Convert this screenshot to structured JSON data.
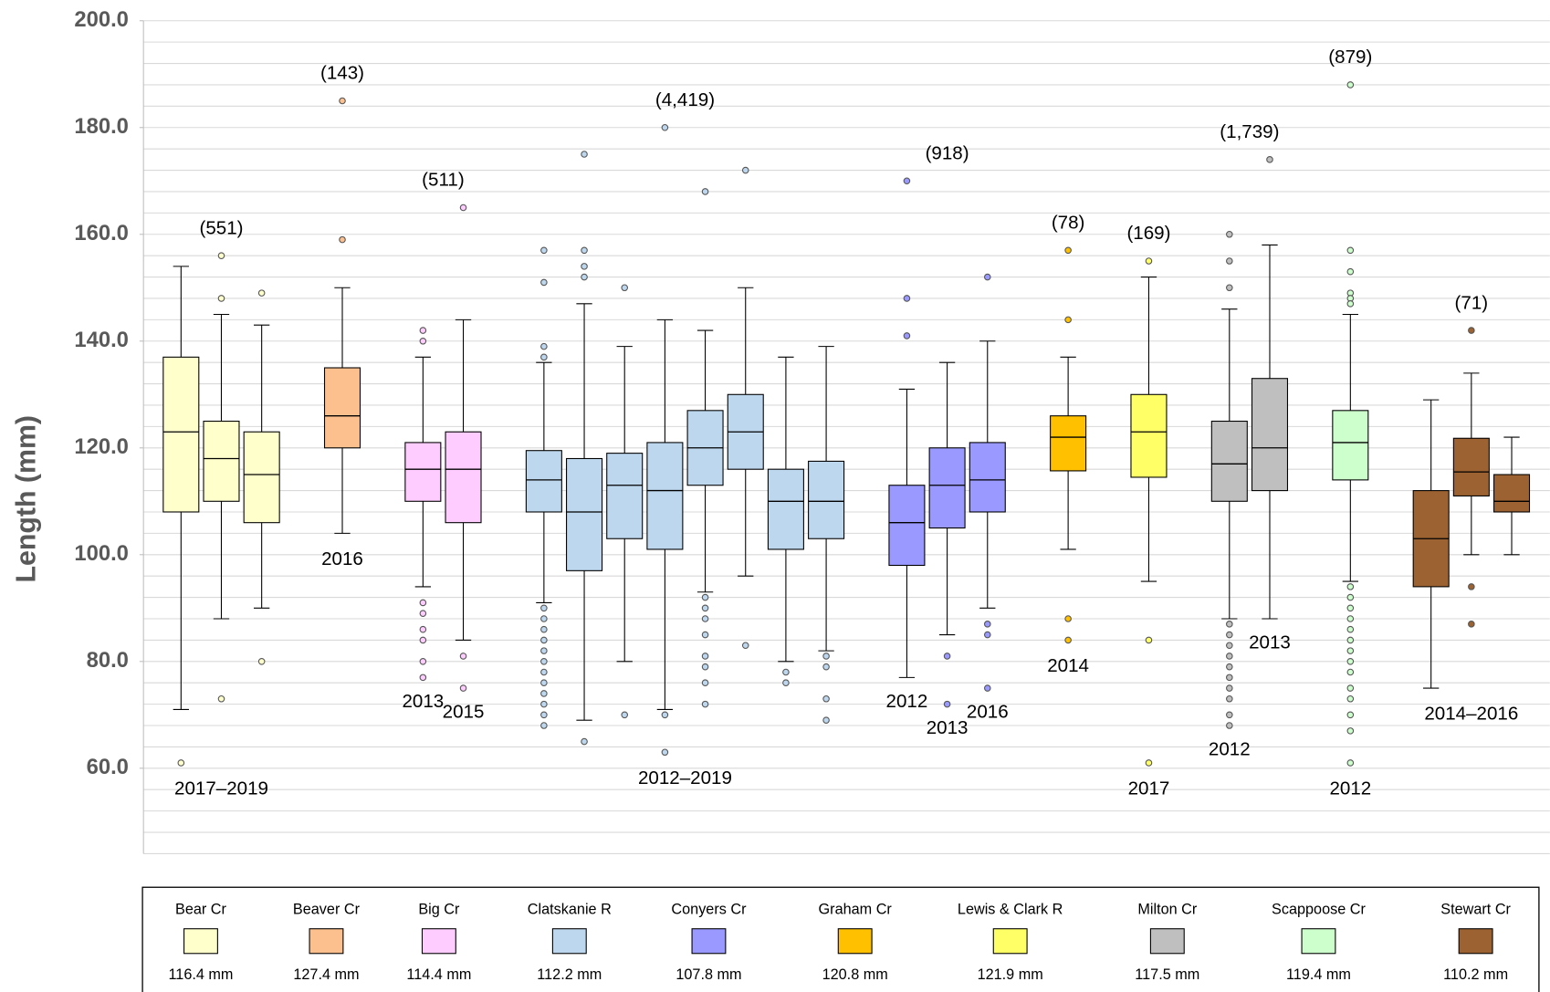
{
  "chart_data": {
    "type": "box",
    "y_label": "Length (mm)",
    "ylim": [
      44,
      200
    ],
    "yticks": [
      {
        "value": 60,
        "label": "60.0"
      },
      {
        "value": 80,
        "label": "80.0"
      },
      {
        "value": 100,
        "label": "100.0"
      },
      {
        "value": 120,
        "label": "120.0"
      },
      {
        "value": 140,
        "label": "140.0"
      },
      {
        "value": 160,
        "label": "160.0"
      },
      {
        "value": 180,
        "label": "180.0"
      },
      {
        "value": 200,
        "label": "200.0"
      }
    ],
    "minor_yticks": [
      44,
      48,
      52,
      56,
      60,
      64,
      68,
      72,
      76,
      80,
      84,
      88,
      92,
      96,
      100,
      104,
      108,
      112,
      116,
      120,
      124,
      128,
      132,
      136,
      140,
      144,
      148,
      152,
      156,
      160,
      164,
      168,
      172,
      176,
      180,
      184,
      188,
      192,
      196,
      200
    ],
    "grid": true,
    "groups": [
      {
        "name": "Bear Cr",
        "color": "#ffffcc",
        "summary": "116.4 mm",
        "count": "(551)",
        "years": "2017–2019",
        "boxes": [
          {
            "whislo": 71,
            "q1": 108,
            "med": 123,
            "q3": 137,
            "whishi": 154,
            "fliers": [
              61
            ]
          },
          {
            "whislo": 88,
            "q1": 110,
            "med": 118,
            "q3": 125,
            "whishi": 145,
            "fliers": [
              156,
              148,
              73
            ]
          },
          {
            "whislo": 90,
            "q1": 106,
            "med": 115,
            "q3": 123,
            "whishi": 143,
            "fliers": [
              149,
              80
            ]
          }
        ]
      },
      {
        "name": "Beaver Cr",
        "color": "#fcc08e",
        "summary": "127.4 mm",
        "count": "(143)",
        "years": "2016",
        "boxes": [
          {
            "whislo": 104,
            "q1": 120,
            "med": 126,
            "q3": 135,
            "whishi": 150,
            "fliers": [
              185,
              159
            ]
          }
        ]
      },
      {
        "name": "Big Cr",
        "color": "#ffccff",
        "summary": "114.4 mm",
        "count": "(511)",
        "boxes": [
          {
            "year": "2013",
            "whislo": 94,
            "q1": 110,
            "med": 116,
            "q3": 121,
            "whishi": 137,
            "fliers": [
              142,
              140,
              91,
              89,
              86,
              84,
              80,
              77
            ]
          },
          {
            "year": "2015",
            "whislo": 84,
            "q1": 106,
            "med": 116,
            "q3": 123,
            "whishi": 144,
            "fliers": [
              165,
              81,
              75
            ]
          }
        ]
      },
      {
        "name": "Clatskanie R",
        "color": "#bdd7ee",
        "summary": "112.2 mm",
        "count": "(4,419)",
        "years": "2012–2019",
        "boxes": [
          {
            "whislo": 91,
            "q1": 108,
            "med": 114,
            "q3": 119.5,
            "whishi": 136,
            "fliers": [
              157,
              151,
              139,
              137,
              90,
              88,
              86,
              84,
              82,
              80,
              78,
              76,
              74,
              72,
              70,
              68
            ]
          },
          {
            "whislo": 69,
            "q1": 97,
            "med": 108,
            "q3": 118,
            "whishi": 147,
            "fliers": [
              175,
              157,
              154,
              152,
              65
            ]
          },
          {
            "whislo": 80,
            "q1": 103,
            "med": 113,
            "q3": 119,
            "whishi": 139,
            "fliers": [
              150,
              70
            ]
          },
          {
            "whislo": 71,
            "q1": 101,
            "med": 112,
            "q3": 121,
            "whishi": 144,
            "fliers": [
              180,
              70,
              63
            ]
          },
          {
            "whislo": 93,
            "q1": 113,
            "med": 120,
            "q3": 127,
            "whishi": 142,
            "fliers": [
              168,
              92,
              90,
              88,
              85,
              81,
              79,
              76,
              72
            ]
          },
          {
            "whislo": 96,
            "q1": 116,
            "med": 123,
            "q3": 130,
            "whishi": 150,
            "fliers": [
              172,
              83
            ]
          },
          {
            "whislo": 80,
            "q1": 101,
            "med": 110,
            "q3": 116,
            "whishi": 137,
            "fliers": [
              78,
              76
            ]
          },
          {
            "whislo": 82,
            "q1": 103,
            "med": 110,
            "q3": 117.5,
            "whishi": 139,
            "fliers": [
              81,
              79,
              73,
              69
            ]
          }
        ]
      },
      {
        "name": "Conyers Cr",
        "color": "#9999ff",
        "summary": "107.8 mm",
        "count": "(918)",
        "boxes": [
          {
            "year": "2012",
            "whislo": 77,
            "q1": 98,
            "med": 106,
            "q3": 113,
            "whishi": 131,
            "fliers": [
              170,
              148,
              141
            ]
          },
          {
            "year": "2013",
            "whislo": 85,
            "q1": 105,
            "med": 113,
            "q3": 120,
            "whishi": 136,
            "fliers": [
              81,
              72
            ]
          },
          {
            "year": "2016",
            "whislo": 90,
            "q1": 108,
            "med": 114,
            "q3": 121,
            "whishi": 140,
            "fliers": [
              152,
              87,
              85,
              75
            ]
          }
        ]
      },
      {
        "name": "Graham Cr",
        "color": "#ffc000",
        "summary": "120.8 mm",
        "count": "(78)",
        "years": "2014",
        "boxes": [
          {
            "whislo": 101,
            "q1": 115.7,
            "med": 122,
            "q3": 126,
            "whishi": 137,
            "fliers": [
              157,
              144,
              88,
              84
            ]
          }
        ]
      },
      {
        "name": "Lewis & Clark R",
        "color": "#ffff66",
        "summary": "121.9 mm",
        "count": "(169)",
        "years": "2017",
        "boxes": [
          {
            "whislo": 95,
            "q1": 114.5,
            "med": 123,
            "q3": 130,
            "whishi": 152,
            "fliers": [
              155,
              84,
              61
            ]
          }
        ]
      },
      {
        "name": "Milton Cr",
        "color": "#bfbfbf",
        "summary": "117.5 mm",
        "count": "(1,739)",
        "boxes": [
          {
            "year": "2012",
            "whislo": 88,
            "q1": 110,
            "med": 117,
            "q3": 125,
            "whishi": 146,
            "fliers": [
              160,
              155,
              150,
              87,
              85,
              83,
              81,
              79,
              77,
              75,
              73,
              70,
              68
            ]
          },
          {
            "year": "2013",
            "whislo": 88,
            "q1": 112,
            "med": 120,
            "q3": 133,
            "whishi": 158,
            "fliers": [
              174
            ]
          }
        ]
      },
      {
        "name": "Scappoose Cr",
        "color": "#ccffcc",
        "summary": "119.4 mm",
        "count": "(879)",
        "years": "2012",
        "boxes": [
          {
            "whislo": 95,
            "q1": 114,
            "med": 121,
            "q3": 127,
            "whishi": 145,
            "fliers": [
              188,
              157,
              153,
              149,
              148,
              147,
              94,
              92,
              90,
              88,
              86,
              84,
              82,
              80,
              78,
              75,
              73,
              70,
              67,
              61
            ]
          }
        ]
      },
      {
        "name": "Stewart Cr",
        "color": "#9c6231",
        "summary": "110.2 mm",
        "count": "(71)",
        "years": "2014–2016",
        "boxes": [
          {
            "whislo": 75,
            "q1": 94,
            "med": 103,
            "q3": 112,
            "whishi": 129,
            "fliers": []
          },
          {
            "whislo": 100,
            "q1": 111,
            "med": 115.5,
            "q3": 121.8,
            "whishi": 134,
            "fliers": [
              142,
              94,
              87
            ]
          },
          {
            "whislo": 100,
            "q1": 108,
            "med": 110,
            "q3": 115,
            "whishi": 122,
            "fliers": []
          }
        ]
      }
    ]
  }
}
